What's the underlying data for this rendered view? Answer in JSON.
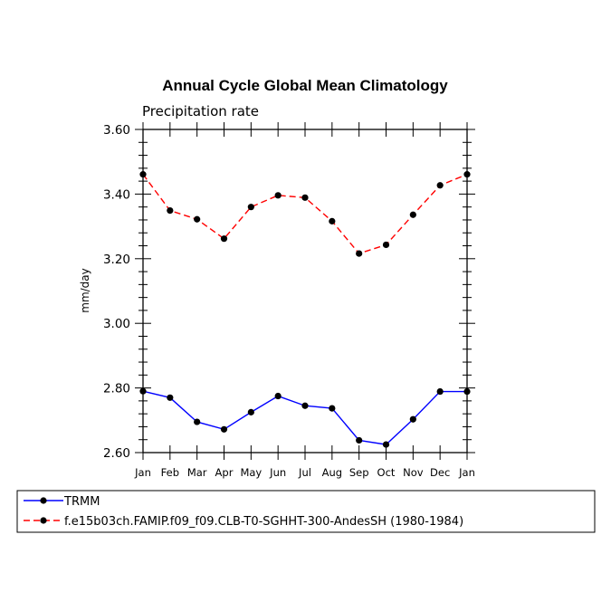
{
  "chart_data": {
    "type": "line",
    "title": "Annual Cycle Global Mean Climatology",
    "subtitle": "Precipitation rate",
    "xlabel": "",
    "ylabel": "mm/day",
    "ylim": [
      2.6,
      3.6
    ],
    "yticks": [
      "3.60",
      "3.40",
      "3.20",
      "3.00",
      "2.80",
      "2.60"
    ],
    "categories": [
      "Jan",
      "Feb",
      "Mar",
      "Apr",
      "May",
      "Jun",
      "Jul",
      "Aug",
      "Sep",
      "Oct",
      "Nov",
      "Dec",
      "Jan"
    ],
    "grid": false,
    "legend_position": "bottom",
    "series": [
      {
        "name": "TRMM",
        "color": "#0000ff",
        "style": "solid",
        "marker": "dot",
        "values": [
          2.79,
          2.77,
          2.695,
          2.672,
          2.725,
          2.775,
          2.745,
          2.737,
          2.638,
          2.625,
          2.703,
          2.789,
          2.789
        ]
      },
      {
        "name": "f.e15b03ch.FAMIP.f09_f09.CLB-T0-SGHHT-300-AndesSH (1980-1984)",
        "color": "#ff0000",
        "style": "dashed",
        "marker": "dot",
        "values": [
          3.461,
          3.349,
          3.322,
          3.262,
          3.36,
          3.396,
          3.389,
          3.316,
          3.216,
          3.243,
          3.336,
          3.427,
          3.461
        ]
      }
    ]
  }
}
